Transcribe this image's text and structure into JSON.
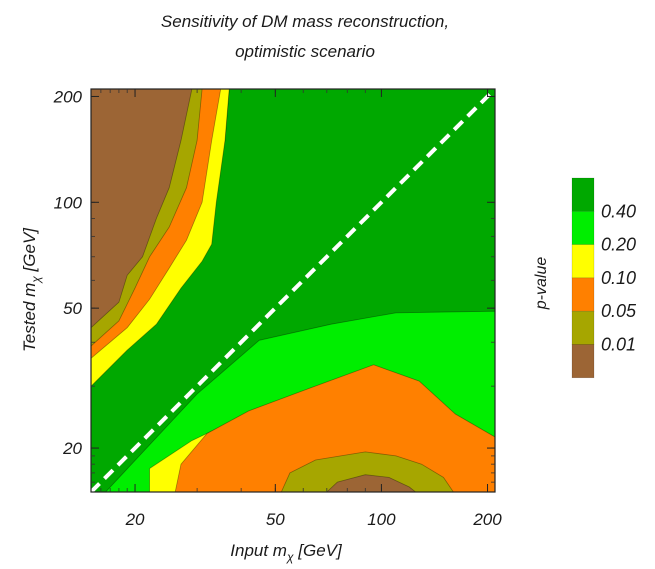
{
  "chart_data": {
    "type": "heatmap",
    "title": "Sensitivity of DM mass reconstruction,",
    "subtitle": "optimistic scenario",
    "xlabel": "Input m",
    "xlabel_sub": "χ",
    "xlabel_unit": " [GeV]",
    "ylabel": "Tested m",
    "ylabel_sub": "χ",
    "ylabel_unit": " [GeV]",
    "x_scale": "log",
    "y_scale": "log",
    "xlim": [
      15,
      210
    ],
    "ylim": [
      15,
      210
    ],
    "x_ticks": [
      {
        "value": 20,
        "label": "20"
      },
      {
        "value": 50,
        "label": "50"
      },
      {
        "value": 100,
        "label": "100"
      },
      {
        "value": 200,
        "label": "200"
      }
    ],
    "y_ticks": [
      {
        "value": 20,
        "label": "20"
      },
      {
        "value": 50,
        "label": "50"
      },
      {
        "value": 100,
        "label": "100"
      },
      {
        "value": 200,
        "label": "200"
      }
    ],
    "diagonal_line": {
      "style": "dashed",
      "color": "#ffffff",
      "meaning": "y = x"
    },
    "legend_title": "p-value",
    "legend_placement": "right",
    "legend": [
      {
        "label": "0.40",
        "color": "#00a800"
      },
      {
        "label": "0.20",
        "color": "#00ee00"
      },
      {
        "label": "0.10",
        "color": "#ffff00"
      },
      {
        "label": "0.05",
        "color": "#ff8000"
      },
      {
        "label": "0.01",
        "color": "#a6a600"
      },
      {
        "label": "",
        "color": "#9c6535"
      }
    ],
    "regions": [
      {
        "color_index": 0,
        "points": [
          [
            15,
            15
          ],
          [
            210,
            15
          ],
          [
            210,
            210
          ],
          [
            15,
            210
          ]
        ]
      },
      {
        "color_index": 1,
        "points": [
          [
            15,
            210
          ],
          [
            15,
            15
          ],
          [
            16.5,
            15
          ],
          [
            30,
            28.5
          ],
          [
            45,
            40.5
          ],
          [
            72,
            45
          ],
          [
            110,
            48.5
          ],
          [
            210,
            49
          ],
          [
            210,
            15
          ],
          [
            16.5,
            15
          ],
          [
            15,
            15
          ],
          [
            15,
            210
          ],
          [
            37,
            210
          ],
          [
            36,
            150
          ],
          [
            33,
            100
          ],
          [
            31,
            76
          ],
          [
            26,
            60
          ],
          [
            20.5,
            45
          ],
          [
            15,
            33
          ]
        ]
      },
      {
        "color_index": 2,
        "points": [
          [
            15,
            210
          ],
          [
            15,
            30
          ],
          [
            19,
            38
          ],
          [
            23,
            45
          ],
          [
            27,
            57
          ],
          [
            31,
            68
          ],
          [
            33,
            76
          ],
          [
            34,
            100
          ],
          [
            36,
            150
          ],
          [
            37,
            210
          ]
        ]
      },
      {
        "color_index": 2,
        "points": [
          [
            22,
            15
          ],
          [
            22,
            17.5
          ],
          [
            29,
            21
          ],
          [
            40,
            24.5
          ],
          [
            60,
            28
          ],
          [
            90,
            30.5
          ],
          [
            125,
            28
          ],
          [
            165,
            23
          ],
          [
            210,
            20
          ],
          [
            210,
            15
          ]
        ]
      },
      {
        "color_index": 3,
        "points": [
          [
            15,
            210
          ],
          [
            15,
            36
          ],
          [
            19,
            44
          ],
          [
            22,
            53
          ],
          [
            25,
            65
          ],
          [
            28,
            78
          ],
          [
            31,
            100
          ],
          [
            33,
            150
          ],
          [
            35,
            210
          ]
        ]
      },
      {
        "color_index": 3,
        "points": [
          [
            26,
            15
          ],
          [
            27,
            18
          ],
          [
            32,
            22
          ],
          [
            42,
            25.5
          ],
          [
            62,
            29.5
          ],
          [
            95,
            34.5
          ],
          [
            128,
            31
          ],
          [
            162,
            25
          ],
          [
            210,
            21.5
          ],
          [
            210,
            15
          ]
        ]
      },
      {
        "color_index": 4,
        "points": [
          [
            15,
            210
          ],
          [
            15,
            39
          ],
          [
            18,
            46
          ],
          [
            20,
            57
          ],
          [
            22,
            70
          ],
          [
            25,
            85
          ],
          [
            28,
            110
          ],
          [
            30,
            150
          ],
          [
            31,
            210
          ]
        ]
      },
      {
        "color_index": 4,
        "points": [
          [
            52,
            15
          ],
          [
            55,
            17
          ],
          [
            65,
            18.5
          ],
          [
            90,
            19.5
          ],
          [
            110,
            19
          ],
          [
            130,
            18
          ],
          [
            150,
            16.5
          ],
          [
            160,
            15
          ]
        ]
      },
      {
        "color_index": 5,
        "points": [
          [
            15,
            210
          ],
          [
            15,
            44
          ],
          [
            18,
            52
          ],
          [
            19,
            62
          ],
          [
            21,
            70
          ],
          [
            23,
            90
          ],
          [
            25,
            110
          ],
          [
            27,
            150
          ],
          [
            29,
            210
          ]
        ]
      },
      {
        "color_index": 5,
        "points": [
          [
            70,
            15
          ],
          [
            75,
            16
          ],
          [
            90,
            16.8
          ],
          [
            105,
            16.5
          ],
          [
            120,
            15.5
          ],
          [
            125,
            15
          ]
        ]
      }
    ]
  }
}
